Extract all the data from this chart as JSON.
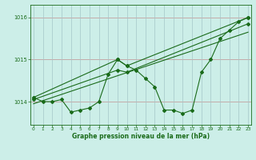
{
  "bg_color": "#cceee8",
  "grid_color": "#aacccc",
  "line_color": "#1a6b1a",
  "marker_color": "#1a6b1a",
  "series1_x": [
    0,
    1,
    2,
    3,
    4,
    5,
    6,
    7,
    8,
    9,
    10,
    11,
    12,
    13,
    14,
    15,
    16,
    17,
    18,
    19,
    20,
    21,
    22,
    23
  ],
  "series1_y": [
    1014.1,
    1014.0,
    1014.0,
    1014.05,
    1013.75,
    1013.8,
    1013.85,
    1014.0,
    1014.65,
    1015.0,
    1014.85,
    1014.75,
    1014.55,
    1014.35,
    1013.8,
    1013.8,
    1013.72,
    1013.8,
    1014.7,
    1015.0,
    1015.5,
    1015.7,
    1015.9,
    1016.0
  ],
  "series2_x": [
    0,
    9,
    10,
    23
  ],
  "series2_y": [
    1014.1,
    1015.0,
    1014.85,
    1016.0
  ],
  "series3_x": [
    0,
    9,
    10,
    23
  ],
  "series3_y": [
    1014.05,
    1014.75,
    1014.7,
    1015.85
  ],
  "series4_x": [
    0,
    23
  ],
  "series4_y": [
    1013.95,
    1015.65
  ],
  "ylabel_ticks": [
    1014,
    1015,
    1016
  ],
  "xlim": [
    -0.3,
    23.3
  ],
  "ylim": [
    1013.45,
    1016.3
  ],
  "xlabel": "Graphe pression niveau de la mer (hPa)",
  "xticks": [
    0,
    1,
    2,
    3,
    4,
    5,
    6,
    7,
    8,
    9,
    10,
    11,
    12,
    13,
    14,
    15,
    16,
    17,
    18,
    19,
    20,
    21,
    22,
    23
  ]
}
